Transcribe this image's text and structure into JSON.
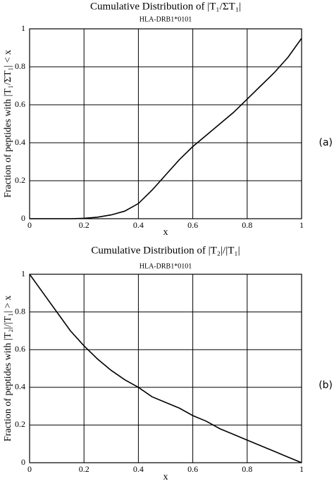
{
  "chart_data": [
    {
      "type": "line",
      "title": "Cumulative Distribution of |T₁/ΣT₁|",
      "subtitle": "HLA-DRB1*0101",
      "x_label": "x",
      "y_label": "Fraction of peptides with |T₁/ΣT₁| < x",
      "annotation": "(a)",
      "x": [
        0,
        0.05,
        0.1,
        0.15,
        0.2,
        0.25,
        0.3,
        0.35,
        0.4,
        0.45,
        0.5,
        0.55,
        0.6,
        0.65,
        0.7,
        0.75,
        0.8,
        0.85,
        0.9,
        0.95,
        1
      ],
      "values": [
        0,
        0,
        0,
        0,
        0.002,
        0.008,
        0.02,
        0.04,
        0.08,
        0.15,
        0.23,
        0.31,
        0.38,
        0.44,
        0.5,
        0.56,
        0.63,
        0.7,
        0.77,
        0.85,
        0.95
      ],
      "color": "#000000",
      "xlim": [
        0,
        1
      ],
      "ylim": [
        0,
        1
      ],
      "xticks": [
        0,
        0.2,
        0.4,
        0.6,
        0.8,
        1
      ],
      "yticks": [
        0,
        0.2,
        0.4,
        0.6,
        0.8,
        1
      ],
      "grid": true
    },
    {
      "type": "line",
      "title": "Cumulative Distribution of |T₂|/|T₁|",
      "subtitle": "HLA-DRB1*0101",
      "x_label": "x",
      "y_label": "Fraction of peptides with |T₂|/|T₁| > x",
      "annotation": "(b)",
      "x": [
        0,
        0.05,
        0.1,
        0.15,
        0.2,
        0.25,
        0.3,
        0.35,
        0.4,
        0.45,
        0.5,
        0.55,
        0.6,
        0.65,
        0.7,
        0.75,
        0.8,
        0.85,
        0.9,
        0.95,
        1
      ],
      "values": [
        1,
        0.9,
        0.8,
        0.7,
        0.62,
        0.55,
        0.49,
        0.44,
        0.4,
        0.35,
        0.32,
        0.29,
        0.25,
        0.22,
        0.18,
        0.15,
        0.12,
        0.09,
        0.06,
        0.03,
        0
      ],
      "color": "#000000",
      "xlim": [
        0,
        1
      ],
      "ylim": [
        0,
        1
      ],
      "xticks": [
        0,
        0.2,
        0.4,
        0.6,
        0.8,
        1
      ],
      "yticks": [
        0,
        0.2,
        0.4,
        0.6,
        0.8,
        1
      ],
      "grid": true
    }
  ]
}
